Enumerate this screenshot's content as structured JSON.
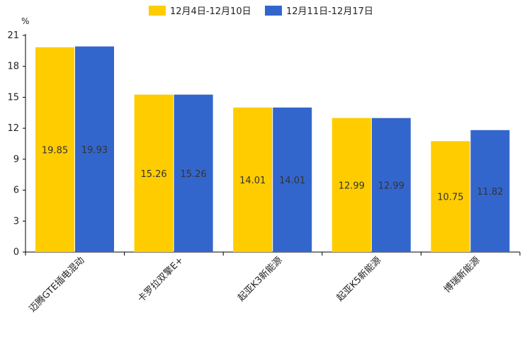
{
  "chart_data": {
    "type": "bar",
    "unit_label": "%",
    "categories": [
      "迈腾GTE插电混动",
      "卡罗拉双擎E+",
      "起亚K3新能源",
      "起亚K5新能源",
      "博瑞新能源"
    ],
    "series": [
      {
        "name": "12月4日-12月10日",
        "color": "#FFCC00",
        "values": [
          19.85,
          15.26,
          14.01,
          12.99,
          10.75
        ]
      },
      {
        "name": "12月11日-12月17日",
        "color": "#3366CC",
        "values": [
          19.93,
          15.26,
          14.01,
          12.99,
          11.82
        ]
      }
    ],
    "ylim": [
      0,
      21
    ],
    "yticks": [
      0,
      3,
      6,
      9,
      12,
      15,
      18,
      21
    ],
    "grid": false,
    "legend_position": "top-center",
    "title": "",
    "xlabel": "",
    "ylabel": "%"
  }
}
